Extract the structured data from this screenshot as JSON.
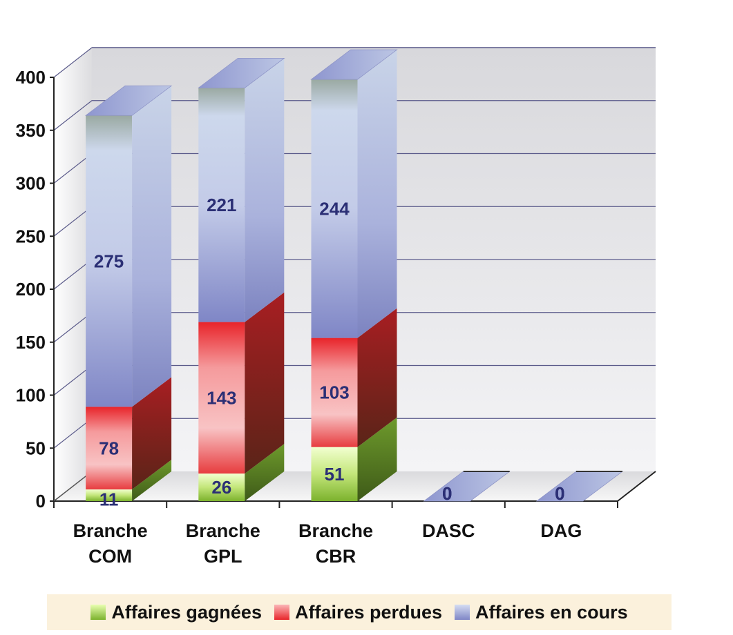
{
  "chart_data": {
    "type": "bar",
    "stacked": true,
    "three_d": true,
    "categories": [
      "Branche COM",
      "Branche GPL",
      "Branche CBR",
      "DASC",
      "DAG"
    ],
    "series": [
      {
        "name": "Affaires gagnées",
        "values": [
          11,
          26,
          51,
          0,
          0
        ],
        "color": "#8cc63f"
      },
      {
        "name": "Affaires perdues",
        "values": [
          78,
          143,
          103,
          0,
          0
        ],
        "color": "#e8262b"
      },
      {
        "name": "Affaires en cours",
        "values": [
          275,
          221,
          244,
          0,
          0
        ],
        "color": "#9aa3d8"
      }
    ],
    "ylim": [
      0,
      400
    ],
    "yticks": [
      "0",
      "50",
      "100",
      "150",
      "200",
      "250",
      "300",
      "350",
      "400"
    ],
    "grid": true,
    "legend_position": "bottom"
  }
}
